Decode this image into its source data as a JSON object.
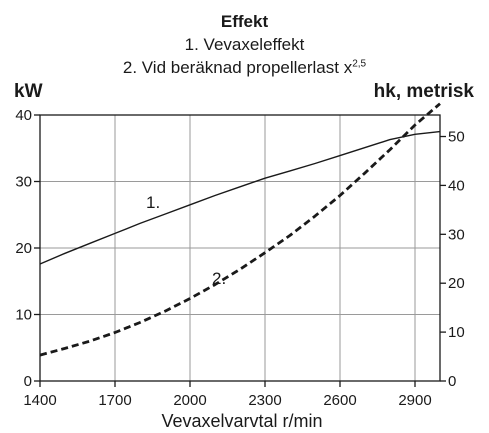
{
  "chart_data": {
    "type": "line",
    "title": "Effekt",
    "subtitle_1": "1. Vevaxeleffekt",
    "subtitle_2_text": "2. Vid beräknad propellerlast x",
    "subtitle_2_exp": "2,5",
    "y_unit_left": "kW",
    "y_unit_right": "hk, metrisk",
    "xlabel": "Vevaxelvarvtal r/min",
    "xlim": [
      1400,
      3000
    ],
    "ylim": [
      0,
      40
    ],
    "y2lim": [
      0,
      54.4
    ],
    "x_ticks": [
      1400,
      1700,
      2000,
      2300,
      2600,
      2900
    ],
    "x_tick_labels": [
      "1400",
      "1700",
      "2000",
      "2300",
      "2600",
      "2900"
    ],
    "y_ticks": [
      0,
      10,
      20,
      30,
      40
    ],
    "y_tick_labels": [
      "0",
      "10",
      "20",
      "30",
      "40"
    ],
    "y2_ticks": [
      0,
      10,
      20,
      30,
      40,
      50
    ],
    "y2_tick_labels": [
      "0",
      "10",
      "20",
      "30",
      "40",
      "50"
    ],
    "grid": true,
    "series": [
      {
        "name": "1.",
        "style": "solid",
        "x": [
          1400,
          1500,
          1600,
          1700,
          1800,
          1900,
          2000,
          2100,
          2200,
          2300,
          2400,
          2500,
          2600,
          2700,
          2800,
          2900,
          3000
        ],
        "y": [
          17.6,
          19.2,
          20.7,
          22.2,
          23.7,
          25.1,
          26.5,
          27.9,
          29.2,
          30.5,
          31.6,
          32.7,
          33.9,
          35.1,
          36.3,
          37.1,
          37.5
        ]
      },
      {
        "name": "2.",
        "style": "dashed",
        "x": [
          1400,
          1500,
          1600,
          1700,
          1800,
          1900,
          2000,
          2100,
          2200,
          2300,
          2400,
          2500,
          2600,
          2700,
          2800,
          2900,
          3000
        ],
        "y": [
          3.9,
          4.9,
          6.0,
          7.3,
          8.8,
          10.5,
          12.4,
          14.5,
          16.8,
          19.3,
          21.9,
          24.8,
          27.9,
          31.3,
          34.8,
          38.5,
          41.7
        ]
      }
    ]
  }
}
